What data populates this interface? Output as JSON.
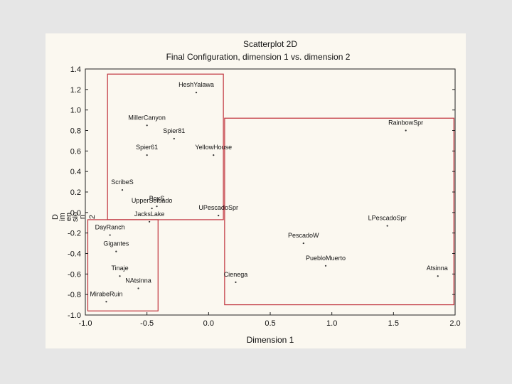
{
  "chart_data": {
    "type": "scatter",
    "title": "Scatterplot 2D",
    "subtitle": "Final Configuration, dimension 1  vs. dimension 2",
    "xlabel": "Dimension 1",
    "ylabel_fragments": [
      "D",
      "im",
      "en",
      "sio",
      "n",
      "2"
    ],
    "xlim": [
      -1.0,
      2.0
    ],
    "ylim": [
      -1.0,
      1.4
    ],
    "xticks": [
      -1.0,
      -0.5,
      0.0,
      0.5,
      1.0,
      1.5,
      2.0
    ],
    "xtick_labels": [
      "-1.0",
      "-0.5",
      "0.0",
      "0.5",
      "1.0",
      "1.5",
      "2.0"
    ],
    "yticks": [
      1.4,
      1.2,
      1.0,
      0.8,
      0.6,
      0.4,
      0.2,
      0.0,
      -0.2,
      -0.4,
      -0.6,
      -0.8,
      -1.0
    ],
    "ytick_labels": [
      "1.4",
      "1.2",
      "1.0",
      "0.8",
      "0.6",
      "0.4",
      "0.2",
      "0.0",
      "-0.2",
      "-0.4",
      "-0.6",
      "-0.8",
      "-1.0"
    ],
    "grid": false,
    "points": [
      {
        "label": "HeshYalawa",
        "x": -0.1,
        "y": 1.17
      },
      {
        "label": "MillerCanyon",
        "x": -0.5,
        "y": 0.85
      },
      {
        "label": "Spier81",
        "x": -0.28,
        "y": 0.72
      },
      {
        "label": "Spier61",
        "x": -0.5,
        "y": 0.56
      },
      {
        "label": "YellowHouse",
        "x": 0.04,
        "y": 0.56
      },
      {
        "label": "ScribeS",
        "x": -0.7,
        "y": 0.22
      },
      {
        "label": "BoxS",
        "x": -0.42,
        "y": 0.06
      },
      {
        "label": "UpperSoldado",
        "x": -0.46,
        "y": 0.04
      },
      {
        "label": "UPescadoSpr",
        "x": 0.08,
        "y": -0.03
      },
      {
        "label": "JacksLake",
        "x": -0.48,
        "y": -0.09
      },
      {
        "label": "DayRanch",
        "x": -0.8,
        "y": -0.22
      },
      {
        "label": "Gigantes",
        "x": -0.75,
        "y": -0.38
      },
      {
        "label": "Tinaje",
        "x": -0.72,
        "y": -0.62
      },
      {
        "label": "NAtsinna",
        "x": -0.57,
        "y": -0.74
      },
      {
        "label": "MirabeRuin",
        "x": -0.83,
        "y": -0.87
      },
      {
        "label": "RainbowSpr",
        "x": 1.6,
        "y": 0.8
      },
      {
        "label": "LPescadoSpr",
        "x": 1.45,
        "y": -0.13
      },
      {
        "label": "PescadoW",
        "x": 0.77,
        "y": -0.3
      },
      {
        "label": "PuebloMuerto",
        "x": 0.95,
        "y": -0.52
      },
      {
        "label": "Atsinna",
        "x": 1.86,
        "y": -0.62
      },
      {
        "label": "Cienega",
        "x": 0.22,
        "y": -0.68
      }
    ],
    "cluster_boxes": [
      {
        "name": "top-left cluster",
        "x_range": [
          -0.82,
          0.12
        ],
        "y_range": [
          -0.07,
          1.35
        ]
      },
      {
        "name": "bottom-left cluster",
        "x_range": [
          -0.98,
          -0.41
        ],
        "y_range": [
          -0.96,
          -0.07
        ]
      },
      {
        "name": "right cluster",
        "x_range": [
          0.13,
          1.99
        ],
        "y_range": [
          -0.9,
          0.92
        ]
      }
    ],
    "colors": {
      "axis": "#222222",
      "box": "#c0333d",
      "card": "#fbf8f0",
      "page": "#e6e6e6"
    }
  }
}
